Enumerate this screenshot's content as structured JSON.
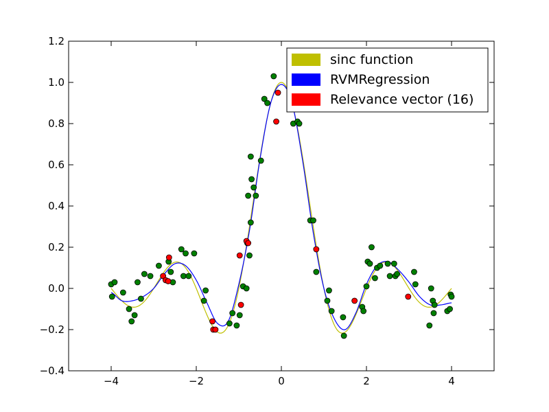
{
  "chart_data": {
    "type": "scatter",
    "xlim": [
      -5,
      5
    ],
    "ylim": [
      -0.4,
      1.2
    ],
    "xticks": [
      -4,
      -2,
      0,
      2,
      4
    ],
    "xtick_labels": [
      "−4",
      "−2",
      "0",
      "2",
      "4"
    ],
    "yticks": [
      -0.4,
      -0.2,
      0.0,
      0.2,
      0.4,
      0.6,
      0.8,
      1.0,
      1.2
    ],
    "ytick_labels": [
      "−0.4",
      "−0.2",
      "0.0",
      "0.2",
      "0.4",
      "0.6",
      "0.8",
      "1.0",
      "1.2"
    ],
    "grid": false,
    "legend_position": "top-right",
    "legend": [
      {
        "label": "sinc function",
        "color": "#bfbf00"
      },
      {
        "label": "RVMRegression",
        "color": "#0000ff"
      },
      {
        "label": "Relevance vector (16)",
        "color": "#ff0000"
      }
    ],
    "series": [
      {
        "name": "sinc function",
        "kind": "line",
        "color": "#bfbf00",
        "function": "sinc",
        "x_range": [
          -4,
          4
        ]
      },
      {
        "name": "RVMRegression",
        "kind": "line",
        "color": "#0000ff",
        "x": [
          -4.0,
          -3.75,
          -3.5,
          -3.25,
          -3.0,
          -2.75,
          -2.5,
          -2.25,
          -2.0,
          -1.75,
          -1.5,
          -1.25,
          -1.0,
          -0.75,
          -0.5,
          -0.25,
          0.0,
          0.25,
          0.5,
          0.75,
          1.0,
          1.25,
          1.5,
          1.75,
          2.0,
          2.25,
          2.5,
          2.75,
          3.0,
          3.25,
          3.5,
          3.75,
          4.0
        ],
        "y": [
          -0.02,
          -0.06,
          -0.06,
          -0.04,
          0.0,
          0.07,
          0.12,
          0.11,
          0.04,
          -0.07,
          -0.17,
          -0.16,
          0.02,
          0.28,
          0.63,
          0.9,
          0.99,
          0.9,
          0.62,
          0.27,
          0.0,
          -0.15,
          -0.2,
          -0.12,
          0.02,
          0.11,
          0.13,
          0.09,
          0.03,
          -0.04,
          -0.08,
          -0.08,
          -0.07
        ]
      },
      {
        "name": "data points",
        "kind": "scatter",
        "color": "#008000",
        "points": [
          [
            -4.0,
            0.02
          ],
          [
            -3.98,
            -0.04
          ],
          [
            -3.92,
            0.03
          ],
          [
            -3.72,
            -0.02
          ],
          [
            -3.58,
            -0.1
          ],
          [
            -3.52,
            -0.16
          ],
          [
            -3.45,
            -0.13
          ],
          [
            -3.38,
            0.03
          ],
          [
            -3.3,
            -0.05
          ],
          [
            -3.22,
            0.07
          ],
          [
            -3.08,
            0.06
          ],
          [
            -2.88,
            0.11
          ],
          [
            -2.65,
            0.13
          ],
          [
            -2.6,
            0.08
          ],
          [
            -2.55,
            0.03
          ],
          [
            -2.35,
            0.19
          ],
          [
            -2.3,
            0.06
          ],
          [
            -2.25,
            0.17
          ],
          [
            -2.18,
            0.06
          ],
          [
            -2.05,
            0.17
          ],
          [
            -1.82,
            -0.06
          ],
          [
            -1.78,
            -0.01
          ],
          [
            -1.22,
            -0.17
          ],
          [
            -1.15,
            -0.12
          ],
          [
            -1.05,
            -0.18
          ],
          [
            -0.98,
            -0.13
          ],
          [
            -0.9,
            0.01
          ],
          [
            -0.8,
            0.22
          ],
          [
            -0.78,
            0.45
          ],
          [
            -0.72,
            0.64
          ],
          [
            -0.7,
            0.53
          ],
          [
            -0.65,
            0.49
          ],
          [
            -0.6,
            0.45
          ],
          [
            -0.48,
            0.62
          ],
          [
            -0.4,
            0.92
          ],
          [
            -0.33,
            0.9
          ],
          [
            -0.18,
            1.03
          ],
          [
            -0.72,
            0.32
          ],
          [
            -0.75,
            0.16
          ],
          [
            -0.82,
            0.0
          ],
          [
            0.28,
            0.8
          ],
          [
            0.38,
            0.81
          ],
          [
            0.42,
            0.8
          ],
          [
            0.68,
            0.33
          ],
          [
            0.75,
            0.33
          ],
          [
            0.82,
            0.08
          ],
          [
            1.08,
            -0.06
          ],
          [
            1.12,
            -0.01
          ],
          [
            1.18,
            -0.11
          ],
          [
            1.45,
            -0.14
          ],
          [
            1.47,
            -0.23
          ],
          [
            1.9,
            -0.09
          ],
          [
            1.93,
            -0.11
          ],
          [
            2.0,
            0.01
          ],
          [
            2.03,
            0.13
          ],
          [
            2.08,
            0.12
          ],
          [
            2.12,
            0.2
          ],
          [
            2.2,
            0.05
          ],
          [
            2.25,
            0.1
          ],
          [
            2.32,
            0.11
          ],
          [
            2.5,
            0.12
          ],
          [
            2.55,
            0.06
          ],
          [
            2.65,
            0.12
          ],
          [
            2.68,
            0.06
          ],
          [
            2.72,
            0.07
          ],
          [
            3.12,
            0.08
          ],
          [
            3.15,
            0.02
          ],
          [
            3.48,
            -0.18
          ],
          [
            3.52,
            0.0
          ],
          [
            3.56,
            -0.06
          ],
          [
            3.58,
            -0.12
          ],
          [
            3.6,
            -0.08
          ],
          [
            3.9,
            -0.11
          ],
          [
            3.96,
            -0.1
          ],
          [
            3.98,
            -0.03
          ],
          [
            4.0,
            -0.04
          ]
        ]
      },
      {
        "name": "Relevance vector (16)",
        "kind": "scatter",
        "color": "#ff0000",
        "points": [
          [
            -2.78,
            0.06
          ],
          [
            -2.72,
            0.04
          ],
          [
            -2.66,
            0.035
          ],
          [
            -2.64,
            0.15
          ],
          [
            -1.62,
            -0.16
          ],
          [
            -1.6,
            -0.2
          ],
          [
            -1.55,
            -0.2
          ],
          [
            -0.95,
            -0.08
          ],
          [
            -0.98,
            0.16
          ],
          [
            -0.82,
            0.23
          ],
          [
            -0.78,
            0.22
          ],
          [
            -0.12,
            0.81
          ],
          [
            -0.08,
            0.95
          ],
          [
            0.82,
            0.19
          ],
          [
            1.72,
            -0.06
          ],
          [
            2.98,
            -0.04
          ]
        ]
      }
    ]
  }
}
